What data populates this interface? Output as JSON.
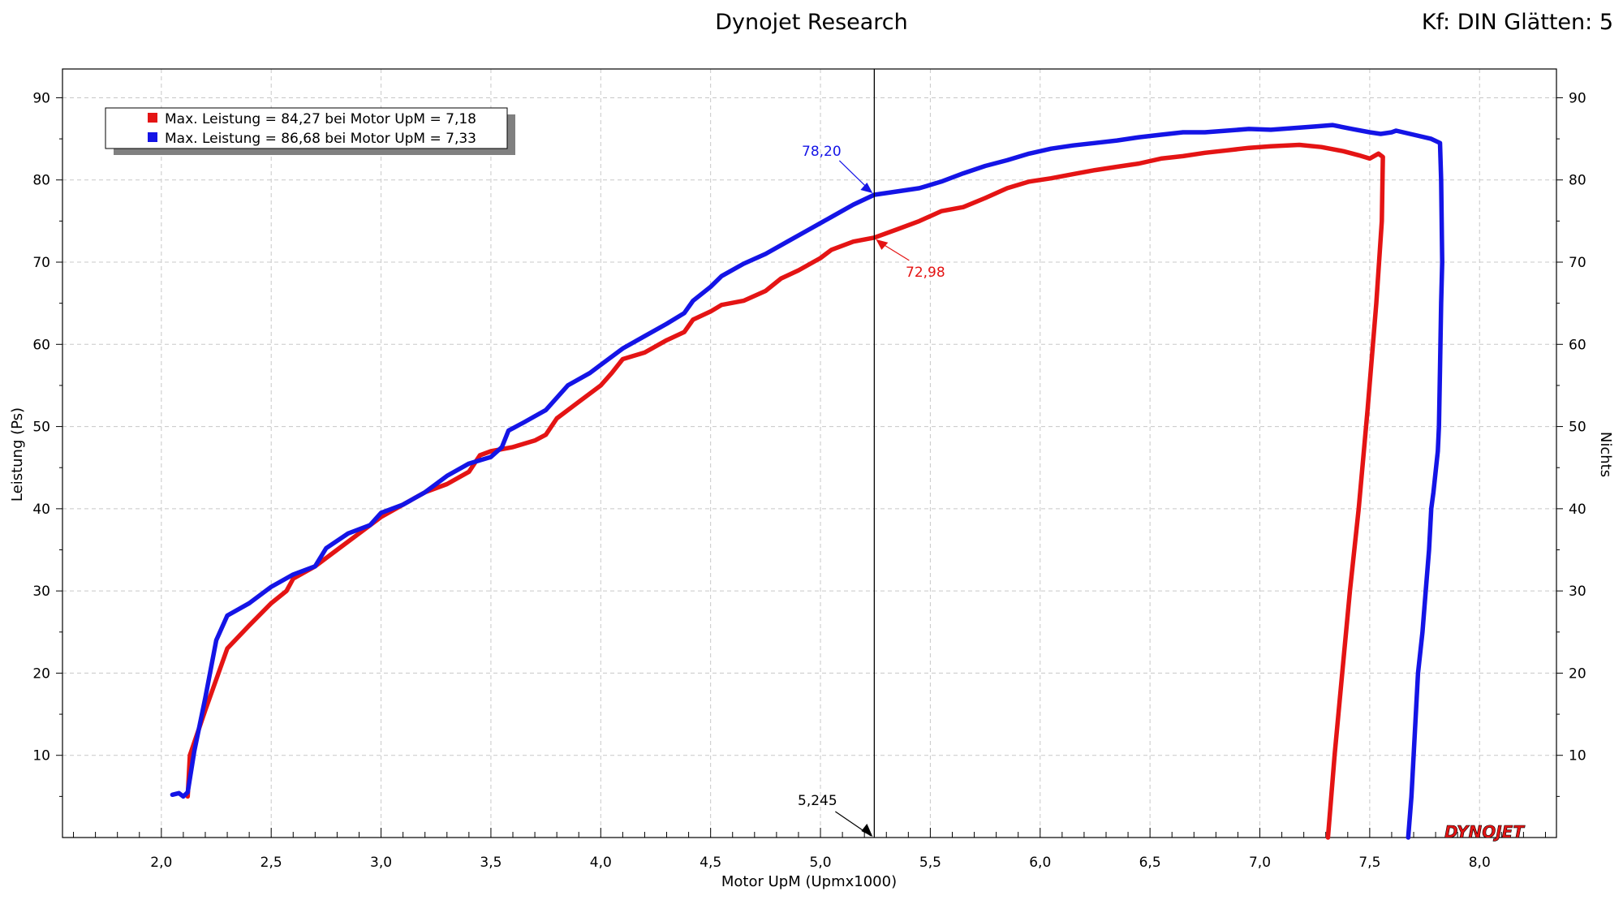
{
  "header": {
    "title": "Dynojet Research",
    "right_text": "Kf: DIN Glätten: 5"
  },
  "logo_text": "DYNOJET",
  "colors": {
    "run1": "#e41414",
    "run2": "#1414e6",
    "grid": "#c8c8c8",
    "cursor": "#000000"
  },
  "chart_data": {
    "type": "line",
    "xlabel": "Motor UpM (Upmx1000)",
    "ylabel": "Leistung (Ps)",
    "y2label": "Nichts",
    "xlim": [
      1.55,
      8.35
    ],
    "ylim": [
      0,
      93.5
    ],
    "x_ticks": [
      "2,0",
      "2,5",
      "3,0",
      "3,5",
      "4,0",
      "4,5",
      "5,0",
      "5,5",
      "6,0",
      "6,5",
      "7,0",
      "7,5",
      "8,0"
    ],
    "x_tick_values": [
      2.0,
      2.5,
      3.0,
      3.5,
      4.0,
      4.5,
      5.0,
      5.5,
      6.0,
      6.5,
      7.0,
      7.5,
      8.0
    ],
    "y_ticks": [
      "10",
      "20",
      "30",
      "40",
      "50",
      "60",
      "70",
      "80",
      "90"
    ],
    "y_tick_values": [
      10,
      20,
      30,
      40,
      50,
      60,
      70,
      80,
      90
    ],
    "grid": true,
    "legend": {
      "position": "top-left",
      "entries": [
        "Max. Leistung = 84,27 bei Motor UpM = 7,18",
        "Max. Leistung = 86,68 bei Motor UpM = 7,33"
      ]
    },
    "cursor": {
      "x": 5.245,
      "label": "5,245"
    },
    "annotations": [
      {
        "series": 1,
        "x": 5.245,
        "y": 78.2,
        "label": "78,20"
      },
      {
        "series": 0,
        "x": 5.245,
        "y": 72.98,
        "label": "72,98"
      }
    ],
    "series": [
      {
        "color": "#e41414",
        "points": [
          [
            2.12,
            5.0
          ],
          [
            2.13,
            10.0
          ],
          [
            2.2,
            15.5
          ],
          [
            2.3,
            23.0
          ],
          [
            2.4,
            25.8
          ],
          [
            2.5,
            28.5
          ],
          [
            2.57,
            30.0
          ],
          [
            2.6,
            31.5
          ],
          [
            2.7,
            33.0
          ],
          [
            2.8,
            35.0
          ],
          [
            2.9,
            37.0
          ],
          [
            3.0,
            39.0
          ],
          [
            3.1,
            40.5
          ],
          [
            3.2,
            42.0
          ],
          [
            3.3,
            43.0
          ],
          [
            3.4,
            44.5
          ],
          [
            3.45,
            46.5
          ],
          [
            3.5,
            47.0
          ],
          [
            3.6,
            47.5
          ],
          [
            3.7,
            48.3
          ],
          [
            3.75,
            49.0
          ],
          [
            3.8,
            51.0
          ],
          [
            3.9,
            53.0
          ],
          [
            4.0,
            55.0
          ],
          [
            4.05,
            56.5
          ],
          [
            4.1,
            58.2
          ],
          [
            4.2,
            59.0
          ],
          [
            4.3,
            60.5
          ],
          [
            4.38,
            61.5
          ],
          [
            4.42,
            63.0
          ],
          [
            4.5,
            64.0
          ],
          [
            4.55,
            64.8
          ],
          [
            4.65,
            65.3
          ],
          [
            4.75,
            66.5
          ],
          [
            4.82,
            68.0
          ],
          [
            4.9,
            69.0
          ],
          [
            5.0,
            70.5
          ],
          [
            5.05,
            71.5
          ],
          [
            5.15,
            72.5
          ],
          [
            5.245,
            72.98
          ],
          [
            5.35,
            74.0
          ],
          [
            5.45,
            75.0
          ],
          [
            5.55,
            76.2
          ],
          [
            5.65,
            76.7
          ],
          [
            5.75,
            77.8
          ],
          [
            5.85,
            79.0
          ],
          [
            5.95,
            79.8
          ],
          [
            6.05,
            80.2
          ],
          [
            6.15,
            80.7
          ],
          [
            6.25,
            81.2
          ],
          [
            6.35,
            81.6
          ],
          [
            6.45,
            82.0
          ],
          [
            6.55,
            82.6
          ],
          [
            6.65,
            82.9
          ],
          [
            6.75,
            83.3
          ],
          [
            6.85,
            83.6
          ],
          [
            6.95,
            83.9
          ],
          [
            7.05,
            84.1
          ],
          [
            7.18,
            84.27
          ],
          [
            7.28,
            84.0
          ],
          [
            7.38,
            83.5
          ],
          [
            7.45,
            83.0
          ],
          [
            7.5,
            82.6
          ],
          [
            7.54,
            83.2
          ],
          [
            7.56,
            82.8
          ],
          [
            7.555,
            75.0
          ],
          [
            7.53,
            65.0
          ],
          [
            7.49,
            52.0
          ],
          [
            7.45,
            40.0
          ],
          [
            7.41,
            30.0
          ],
          [
            7.375,
            20.0
          ],
          [
            7.34,
            10.0
          ],
          [
            7.31,
            0.0
          ]
        ]
      },
      {
        "color": "#1414e6",
        "points": [
          [
            2.05,
            5.2
          ],
          [
            2.08,
            5.4
          ],
          [
            2.1,
            5.0
          ],
          [
            2.12,
            5.5
          ],
          [
            2.15,
            10.5
          ],
          [
            2.2,
            17.0
          ],
          [
            2.25,
            24.0
          ],
          [
            2.3,
            27.0
          ],
          [
            2.4,
            28.5
          ],
          [
            2.5,
            30.5
          ],
          [
            2.6,
            32.0
          ],
          [
            2.7,
            33.0
          ],
          [
            2.75,
            35.2
          ],
          [
            2.85,
            37.0
          ],
          [
            2.95,
            38.0
          ],
          [
            3.0,
            39.5
          ],
          [
            3.1,
            40.5
          ],
          [
            3.2,
            42.0
          ],
          [
            3.3,
            44.0
          ],
          [
            3.4,
            45.5
          ],
          [
            3.5,
            46.3
          ],
          [
            3.55,
            47.5
          ],
          [
            3.58,
            49.5
          ],
          [
            3.65,
            50.5
          ],
          [
            3.75,
            52.0
          ],
          [
            3.8,
            53.5
          ],
          [
            3.85,
            55.0
          ],
          [
            3.95,
            56.5
          ],
          [
            4.0,
            57.5
          ],
          [
            4.1,
            59.5
          ],
          [
            4.2,
            61.0
          ],
          [
            4.3,
            62.5
          ],
          [
            4.38,
            63.8
          ],
          [
            4.42,
            65.3
          ],
          [
            4.5,
            67.0
          ],
          [
            4.55,
            68.3
          ],
          [
            4.65,
            69.8
          ],
          [
            4.75,
            71.0
          ],
          [
            4.85,
            72.5
          ],
          [
            4.95,
            74.0
          ],
          [
            5.05,
            75.5
          ],
          [
            5.15,
            77.0
          ],
          [
            5.245,
            78.2
          ],
          [
            5.35,
            78.6
          ],
          [
            5.45,
            79.0
          ],
          [
            5.55,
            79.8
          ],
          [
            5.65,
            80.8
          ],
          [
            5.75,
            81.7
          ],
          [
            5.85,
            82.4
          ],
          [
            5.95,
            83.2
          ],
          [
            6.05,
            83.8
          ],
          [
            6.15,
            84.2
          ],
          [
            6.25,
            84.5
          ],
          [
            6.35,
            84.8
          ],
          [
            6.45,
            85.2
          ],
          [
            6.55,
            85.5
          ],
          [
            6.65,
            85.8
          ],
          [
            6.75,
            85.8
          ],
          [
            6.85,
            86.0
          ],
          [
            6.95,
            86.2
          ],
          [
            7.05,
            86.1
          ],
          [
            7.15,
            86.3
          ],
          [
            7.25,
            86.5
          ],
          [
            7.33,
            86.68
          ],
          [
            7.42,
            86.2
          ],
          [
            7.5,
            85.8
          ],
          [
            7.55,
            85.6
          ],
          [
            7.6,
            85.8
          ],
          [
            7.62,
            86.0
          ],
          [
            7.7,
            85.5
          ],
          [
            7.78,
            85.0
          ],
          [
            7.82,
            84.5
          ],
          [
            7.825,
            80.0
          ],
          [
            7.83,
            70.0
          ],
          [
            7.825,
            65.0
          ],
          [
            7.82,
            57.0
          ],
          [
            7.815,
            50.0
          ],
          [
            7.81,
            47.0
          ],
          [
            7.79,
            42.0
          ],
          [
            7.78,
            40.0
          ],
          [
            7.77,
            35.0
          ],
          [
            7.755,
            30.0
          ],
          [
            7.74,
            25.0
          ],
          [
            7.72,
            20.0
          ],
          [
            7.7,
            10.0
          ],
          [
            7.69,
            5.0
          ],
          [
            7.675,
            0.0
          ]
        ]
      }
    ]
  }
}
